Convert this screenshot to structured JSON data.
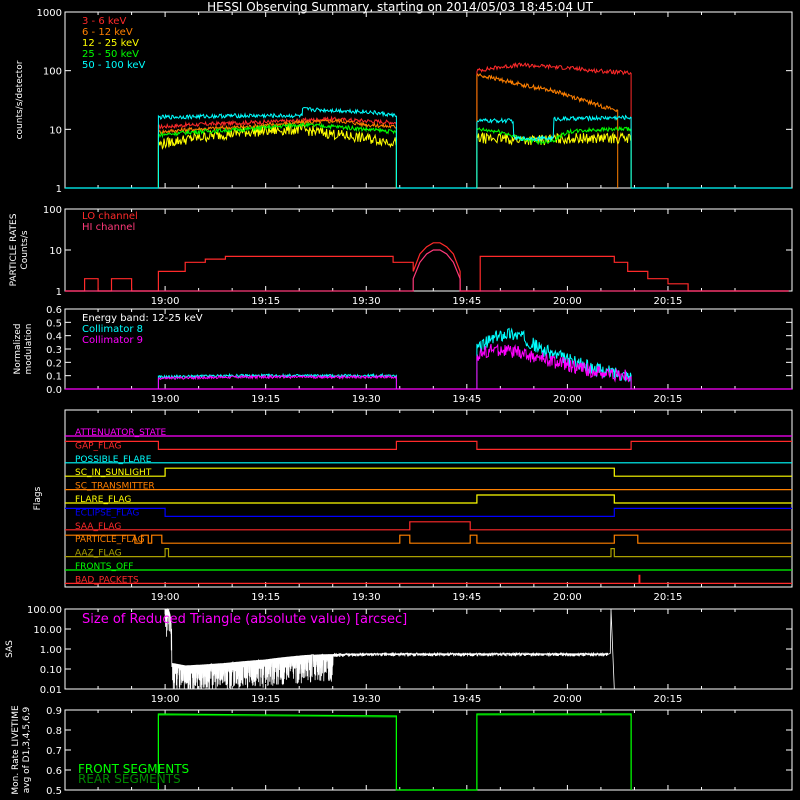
{
  "page_title": "HESSI Observing Summary, starting on 2014/05/03 18:45:04 UT",
  "time_ticks": [
    "19:00",
    "19:15",
    "19:30",
    "19:45",
    "20:00",
    "20:15"
  ],
  "time_tick_minutes": [
    900,
    915,
    930,
    945,
    960,
    975
  ],
  "time_range_minutes": [
    885.07,
    993.5
  ],
  "colors": {
    "red": "#ff2a2a",
    "orange": "#ff8000",
    "yellow": "#ffff00",
    "green": "#00ff00",
    "cyan": "#00ffff",
    "magenta": "#ff00ff",
    "blue": "#0000ff",
    "olive": "#aaa000",
    "pink": "#ff3a7a",
    "dark_red": "#cc0000",
    "white": "#ffffff"
  },
  "chart_data": [
    {
      "type": "line",
      "panel": "count-rates",
      "title": "HESSI Observing Summary, starting on 2014/05/03 18:45:04 UT",
      "ylabel": "counts/s/detector",
      "yscale": "log",
      "ylim": [
        1,
        1000
      ],
      "ytick_labels": [
        "1",
        "10",
        "100",
        "1000"
      ],
      "ytick_values": [
        1,
        10,
        100,
        1000
      ],
      "legend_placement": "top-left",
      "series": [
        {
          "name": "3 - 6  keV",
          "color": "#ff2a2a",
          "segments": [
            {
              "x": [
                899,
                904,
                912,
                920,
                924,
                930,
                934.5
              ],
              "y": [
                11,
                12,
                13,
                14,
                15,
                14,
                13
              ]
            },
            {
              "x": [
                946.5,
                950,
                953,
                956,
                960,
                964,
                967,
                969.5
              ],
              "y": [
                100,
                115,
                125,
                120,
                112,
                100,
                95,
                90
              ]
            }
          ]
        },
        {
          "name": "6 - 12  keV",
          "color": "#ff8000",
          "segments": [
            {
              "x": [
                899,
                904,
                912,
                920,
                926,
                930,
                934.5
              ],
              "y": [
                9,
                10,
                11,
                13,
                14,
                12,
                11
              ]
            },
            {
              "x": [
                946.5,
                950,
                954,
                958,
                962,
                965,
                967.5
              ],
              "y": [
                85,
                70,
                55,
                45,
                32,
                25,
                21
              ]
            }
          ]
        },
        {
          "name": "12 - 25  keV",
          "color": "#ffff00",
          "segments": [
            {
              "x": [
                899,
                904,
                912,
                920,
                926,
                930,
                934.5
              ],
              "y": [
                5.5,
                7,
                9,
                10,
                8,
                7,
                6
              ]
            },
            {
              "x": [
                946.5,
                950,
                955,
                960,
                965,
                969.5
              ],
              "y": [
                7,
                7,
                6.5,
                7,
                7,
                7
              ]
            }
          ]
        },
        {
          "name": "25 - 50  keV",
          "color": "#00ff00",
          "segments": [
            {
              "x": [
                899,
                904,
                912,
                920,
                926,
                930,
                934.5
              ],
              "y": [
                8,
                9,
                10,
                12,
                11,
                10,
                9
              ]
            },
            {
              "x": [
                946.5,
                950,
                953,
                956,
                958,
                960,
                965,
                969.5
              ],
              "y": [
                10,
                9,
                7,
                6,
                6.5,
                9,
                10,
                10
              ]
            }
          ]
        },
        {
          "name": "50 - 100  keV",
          "color": "#00ffff",
          "segments": [
            {
              "x": [
                899,
                910,
                920.5,
                920.5,
                930,
                934.5
              ],
              "y": [
                16,
                17,
                17,
                22,
                20,
                17
              ]
            },
            {
              "x": [
                946.5,
                952,
                952,
                958,
                958,
                969.5
              ],
              "y": [
                14,
                14,
                7,
                7,
                15,
                16
              ]
            }
          ]
        }
      ],
      "baseline": {
        "value": 1,
        "color": "#00ffff"
      }
    },
    {
      "type": "line",
      "panel": "particle-rates",
      "ylabel": "PARTICLE RATES Counts/s",
      "yscale": "log",
      "ylim": [
        1,
        100
      ],
      "ytick_labels": [
        "1",
        "10",
        "100"
      ],
      "ytick_values": [
        1,
        10,
        100
      ],
      "series": [
        {
          "name": "LO channel",
          "color": "#ff2a2a",
          "x": [
            885.07,
            888,
            888,
            890,
            890,
            892,
            892,
            895,
            895,
            899,
            899,
            903,
            903,
            906,
            906,
            909,
            909,
            934,
            934,
            937,
            937,
            938,
            939,
            940,
            941,
            942,
            943,
            944,
            944,
            947,
            947,
            967,
            967,
            969,
            969,
            972,
            972,
            975,
            975,
            978,
            978,
            993
          ],
          "y": [
            1,
            1,
            2,
            2,
            1,
            1,
            2,
            2,
            1,
            1,
            3,
            3,
            5,
            5,
            6,
            6,
            7,
            7,
            5,
            5,
            3,
            8,
            12,
            15,
            15,
            12,
            8,
            3,
            1,
            1,
            7,
            7,
            5,
            5,
            3,
            3,
            2,
            2,
            1.5,
            1.5,
            1,
            1
          ]
        },
        {
          "name": "HI channel",
          "color": "#ff3a7a",
          "x": [
            885.07,
            937,
            937,
            938,
            939,
            940,
            941,
            942,
            943,
            944,
            944,
            993
          ],
          "y": [
            1,
            1,
            2,
            5,
            8,
            10,
            10,
            8,
            5,
            2,
            1,
            1
          ]
        }
      ]
    },
    {
      "type": "line",
      "panel": "modulation",
      "ylabel": "Normalized modulation",
      "ylim": [
        0,
        0.6
      ],
      "ytick_labels": [
        "0.0",
        "0.1",
        "0.2",
        "0.3",
        "0.4",
        "0.5",
        "0.6"
      ],
      "ytick_values": [
        0.0,
        0.1,
        0.2,
        0.3,
        0.4,
        0.5,
        0.6
      ],
      "legend_header": "Energy band: 12-25 keV",
      "series": [
        {
          "name": "Collimator 8",
          "color": "#00ffff",
          "segments": [
            {
              "x": [
                899,
                910,
                920,
                934.5
              ],
              "y": [
                0.09,
                0.1,
                0.1,
                0.1
              ]
            },
            {
              "x": [
                946.5,
                949,
                951,
                953,
                956,
                960,
                964,
                969.5
              ],
              "y": [
                0.3,
                0.38,
                0.42,
                0.4,
                0.3,
                0.22,
                0.15,
                0.1
              ]
            }
          ]
        },
        {
          "name": "Collimator 9",
          "color": "#ff00ff",
          "segments": [
            {
              "x": [
                899,
                910,
                920,
                934.5
              ],
              "y": [
                0.08,
                0.09,
                0.09,
                0.09
              ]
            },
            {
              "x": [
                946.5,
                949,
                952,
                956,
                960,
                964,
                969.5
              ],
              "y": [
                0.25,
                0.3,
                0.28,
                0.23,
                0.18,
                0.13,
                0.09
              ]
            }
          ]
        }
      ],
      "baseline": {
        "value": 0,
        "color": "#ff00ff"
      }
    },
    {
      "type": "line",
      "panel": "flags",
      "ylabel": "Flags",
      "flags": [
        {
          "name": "ATTENUATOR_STATE",
          "color": "#ff00ff",
          "changes": [],
          "high": []
        },
        {
          "name": "GAP_FLAG",
          "color": "#ff2a2a",
          "high": [
            [
              885.07,
              899
            ],
            [
              934.5,
              946.5
            ],
            [
              969.5,
              993.5
            ]
          ]
        },
        {
          "name": "POSSIBLE_FLARE",
          "color": "#00ffff",
          "high": []
        },
        {
          "name": "SC_IN_SUNLIGHT",
          "color": "#ffff00",
          "high": [
            [
              900,
              967
            ]
          ]
        },
        {
          "name": "SC_TRANSMITTER",
          "color": "#ff8000",
          "high": []
        },
        {
          "name": "FLARE_FLAG",
          "color": "#ffff00",
          "high": [
            [
              946.5,
              967
            ]
          ]
        },
        {
          "name": "ECLIPSE_FLAG",
          "color": "#0000ff",
          "high": [
            [
              885.07,
              900
            ],
            [
              967,
              993.5
            ]
          ]
        },
        {
          "name": "SAA_FLAG",
          "color": "#ff2a2a",
          "high": [
            [
              936.5,
              945.5
            ]
          ]
        },
        {
          "name": "PARTICLE_FLAG",
          "color": "#ff8000",
          "high": [
            [
              885.07,
              895.5
            ],
            [
              896.5,
              897.5
            ],
            [
              898,
              899.5
            ],
            [
              935,
              936.5
            ],
            [
              945.5,
              946.5
            ],
            [
              967,
              970.5
            ]
          ]
        },
        {
          "name": "AAZ_FLAG",
          "color": "#aaa000",
          "high": [
            [
              900,
              900.5
            ],
            [
              966.5,
              967
            ]
          ]
        },
        {
          "name": "FRONTS_OFF",
          "color": "#00ff00",
          "high": []
        },
        {
          "name": "BAD_PACKETS",
          "color": "#ff2a2a",
          "high": [
            [
              970.7,
              970.8
            ]
          ]
        }
      ]
    },
    {
      "type": "line",
      "panel": "sas",
      "ylabel": "SAS",
      "yscale": "log",
      "ylim": [
        0.01,
        100
      ],
      "ytick_labels": [
        "0.01",
        "0.10",
        "1.00",
        "10.00",
        "100.00"
      ],
      "ytick_values": [
        0.01,
        0.1,
        1,
        10,
        100
      ],
      "annotation": "Size of Reduced Triangle (absolute value) [arcsec]",
      "series": [
        {
          "name": "Size of Reduced Triangle (absolute value) [arcsec]",
          "color": "#ffffff",
          "x": [
            900,
            900.5,
            901,
            903,
            906,
            909,
            912,
            915,
            918,
            921,
            924,
            930,
            940,
            950,
            960,
            966,
            966.5,
            967
          ],
          "y": [
            100,
            100,
            0.2,
            0.15,
            0.17,
            0.2,
            0.25,
            0.3,
            0.4,
            0.5,
            0.55,
            0.6,
            0.6,
            0.6,
            0.6,
            0.6,
            100,
            0.01
          ]
        }
      ]
    },
    {
      "type": "line",
      "panel": "livetime",
      "ylabel": "Mon. Rate LIVETIME avg of D1,3,4,5,6,9",
      "ylim": [
        0.5,
        0.9
      ],
      "ytick_labels": [
        "0.5",
        "0.6",
        "0.7",
        "0.8",
        "0.9"
      ],
      "ytick_values": [
        0.5,
        0.6,
        0.7,
        0.8,
        0.9
      ],
      "series": [
        {
          "name": "FRONT SEGMENTS",
          "color": "#00ff00",
          "x": [
            899,
            899,
            934.5,
            934.5,
            946.5,
            946.5,
            969.5,
            969.5
          ],
          "y": [
            0.5,
            0.88,
            0.87,
            0.5,
            0.5,
            0.88,
            0.88,
            0.5
          ]
        },
        {
          "name": "REAR SEGMENTS",
          "color": "#008800",
          "x": [
            899,
            899,
            934.5,
            934.5,
            946.5,
            946.5,
            969.5,
            969.5
          ],
          "y": [
            0.5,
            0.875,
            0.865,
            0.5,
            0.5,
            0.875,
            0.875,
            0.5
          ]
        }
      ]
    }
  ]
}
